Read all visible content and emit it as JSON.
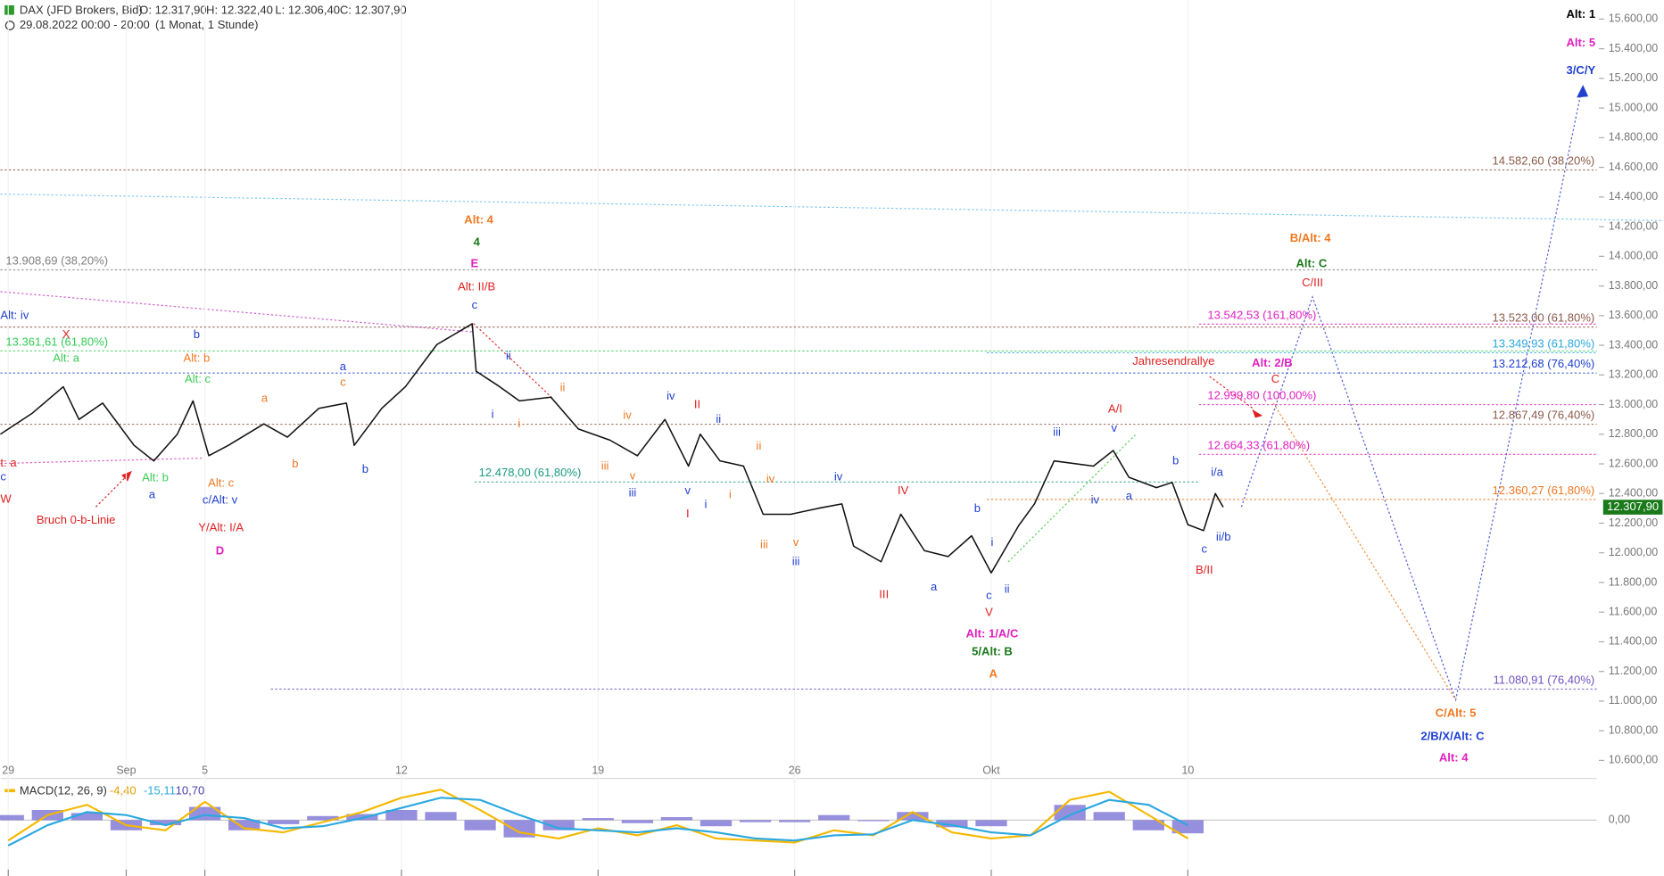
{
  "chart_data": [
    {
      "type": "line",
      "title": "DAX (JFD Brokers, Bid)",
      "ohlc": [
        "O: 12.317,90",
        "H: 12.322,40",
        "L: 12.306,40",
        "C: 12.307,90"
      ],
      "period": "29.08.2022 00:00 - 20:00",
      "interval": "(1 Monat, 1 Stunde)",
      "color": "#111111",
      "grid": true,
      "xlim": [
        -0.2,
        40.4
      ],
      "ylim": [
        10600,
        15600
      ],
      "xticks": [
        {
          "value": 0,
          "label": "29"
        },
        {
          "value": 3,
          "label": "Sep"
        },
        {
          "value": 5,
          "label": "5"
        },
        {
          "value": 10,
          "label": "12"
        },
        {
          "value": 15,
          "label": "19"
        },
        {
          "value": 20,
          "label": "26"
        },
        {
          "value": 25,
          "label": "Okt"
        },
        {
          "value": 30,
          "label": "10"
        }
      ],
      "yticks": [
        {
          "value": 10600,
          "label": "10.600,00"
        },
        {
          "value": 10800,
          "label": "10.800,00"
        },
        {
          "value": 11000,
          "label": "11.000,00"
        },
        {
          "value": 11200,
          "label": "11.200,00"
        },
        {
          "value": 11400,
          "label": "11.400,00"
        },
        {
          "value": 11600,
          "label": "11.600,00"
        },
        {
          "value": 11800,
          "label": "11.800,00"
        },
        {
          "value": 12000,
          "label": "12.000,00"
        },
        {
          "value": 12200,
          "label": "12.200,00"
        },
        {
          "value": 12400,
          "label": "12.400,00"
        },
        {
          "value": 12600,
          "label": "12.600,00"
        },
        {
          "value": 12800,
          "label": "12.800,00"
        },
        {
          "value": 13000,
          "label": "13.000,00"
        },
        {
          "value": 13200,
          "label": "13.200,00"
        },
        {
          "value": 13400,
          "label": "13.400,00"
        },
        {
          "value": 13600,
          "label": "13.600,00"
        },
        {
          "value": 13800,
          "label": "13.800,00"
        },
        {
          "value": 14000,
          "label": "14.000,00"
        },
        {
          "value": 14200,
          "label": "14.200,00"
        },
        {
          "value": 14400,
          "label": "14.400,00"
        },
        {
          "value": 14600,
          "label": "14.600,00"
        },
        {
          "value": 14800,
          "label": "14.800,00"
        },
        {
          "value": 15000,
          "label": "15.000,00"
        },
        {
          "value": 15200,
          "label": "15.200,00"
        },
        {
          "value": 15400,
          "label": "15.400,00"
        },
        {
          "value": 15600,
          "label": "15.600,00"
        }
      ],
      "x": [
        -0.2,
        0.6,
        1.4,
        1.8,
        2.4,
        3.2,
        3.7,
        4.3,
        4.7,
        5.1,
        5.6,
        6.5,
        7.1,
        7.9,
        8.6,
        8.8,
        9.5,
        10.1,
        10.9,
        11.8,
        11.9,
        12.5,
        13.0,
        13.8,
        14.5,
        15.3,
        16.0,
        16.7,
        17.3,
        17.6,
        18.1,
        18.7,
        19.2,
        19.9,
        20.6,
        21.2,
        21.5,
        22.2,
        22.7,
        23.3,
        23.9,
        24.5,
        25.0,
        25.7,
        26.1,
        26.6,
        27.6,
        28.1,
        28.5,
        29.2,
        29.6,
        30.0,
        30.4,
        30.7,
        30.9
      ],
      "values": [
        12800,
        12940,
        13120,
        12900,
        13010,
        12725,
        12620,
        12800,
        13025,
        12655,
        12725,
        12870,
        12780,
        12975,
        13010,
        12725,
        12975,
        13120,
        13405,
        13545,
        13225,
        13120,
        13025,
        13050,
        12835,
        12760,
        12655,
        12900,
        12585,
        12800,
        12620,
        12585,
        12260,
        12260,
        12300,
        12330,
        12045,
        11940,
        12260,
        12015,
        11975,
        12115,
        11865,
        12185,
        12330,
        12620,
        12585,
        12690,
        12510,
        12440,
        12475,
        12190,
        12150,
        12400,
        12308
      ],
      "last_price": {
        "value": 12307.9,
        "label": "12.307,90",
        "color": "#1a7a1a"
      },
      "levels": [
        {
          "value": 14582.6,
          "label": "14.582,60 (38,20%)",
          "color": "#8b5a4a"
        },
        {
          "value": 13908.69,
          "label": "13.908,69 (38,20%)",
          "color": "#808080"
        },
        {
          "value": 13523,
          "label": "13.523,00 (61,80%)",
          "color": "#8b5a4a"
        },
        {
          "value": 13361.61,
          "label": "13.361,61 (61,80%)",
          "color": "#33cc55"
        },
        {
          "value": 13349.93,
          "label": "13.349,93 (61,80%)",
          "color": "#2aa8e0"
        },
        {
          "value": 13212.68,
          "label": "13.212,68 (76,40%)",
          "color": "#2040d0"
        },
        {
          "value": 12867.49,
          "label": "12.867,49 (76,40%)",
          "color": "#8b5a4a"
        },
        {
          "value": 12478,
          "label": "12.478,00 (61,80%)",
          "color": "#1a9a80"
        },
        {
          "value": 12360.27,
          "label": "12.360,27 (61,80%)",
          "color": "#f07820"
        },
        {
          "value": 11080.91,
          "label": "11.080,91 (76,40%)",
          "color": "#7050c0"
        },
        {
          "value": 13542.53,
          "label": "13.542,53 (161,80%)",
          "color": "#e020c0"
        },
        {
          "value": 12999.8,
          "label": "12.999,80 (100,00%)",
          "color": "#e020c0"
        },
        {
          "value": 12664.33,
          "label": "12.664,33 (61,80%)",
          "color": "#e020c0"
        }
      ],
      "annotations": [
        {
          "text": "Alt: 1",
          "color": "#000000"
        },
        {
          "text": "Alt: 5",
          "color": "#e020c0"
        },
        {
          "text": "3/C/Y",
          "color": "#2040d0"
        },
        {
          "text": "Alt: 4",
          "color": "#f07820"
        },
        {
          "text": "4",
          "color": "#1a7a1a"
        },
        {
          "text": "E",
          "color": "#e020c0"
        },
        {
          "text": "Alt: II/B",
          "color": "#e02020"
        },
        {
          "text": "c",
          "color": "#2040d0"
        },
        {
          "text": "Alt: iv",
          "color": "#2040d0"
        },
        {
          "text": "X",
          "color": "#e02020"
        },
        {
          "text": "Alt: a",
          "color": "#3ccc55"
        },
        {
          "text": "b",
          "color": "#2040d0"
        },
        {
          "text": "Alt: b",
          "color": "#f07820"
        },
        {
          "text": "Alt: c",
          "color": "#3ccc55"
        },
        {
          "text": "a",
          "color": "#2040d0"
        },
        {
          "text": "c",
          "color": "#f07820"
        },
        {
          "text": "a",
          "color": "#f07820"
        },
        {
          "text": "b",
          "color": "#f07820"
        },
        {
          "text": "b",
          "color": "#2040d0"
        },
        {
          "text": "i",
          "color": "#2040d0"
        },
        {
          "text": "ii",
          "color": "#2040d0"
        },
        {
          "text": "i",
          "color": "#f07820"
        },
        {
          "text": "ii",
          "color": "#f07820"
        },
        {
          "text": "iii",
          "color": "#f07820"
        },
        {
          "text": "iv",
          "color": "#f07820"
        },
        {
          "text": "v",
          "color": "#f07820"
        },
        {
          "text": "iii",
          "color": "#2040d0"
        },
        {
          "text": "iv",
          "color": "#2040d0"
        },
        {
          "text": "II",
          "color": "#e02020"
        },
        {
          "text": "ii",
          "color": "#2040d0"
        },
        {
          "text": "v",
          "color": "#2040d0"
        },
        {
          "text": "i",
          "color": "#2040d0"
        },
        {
          "text": "I",
          "color": "#e02020"
        },
        {
          "text": "i",
          "color": "#f07820"
        },
        {
          "text": "ii",
          "color": "#f07820"
        },
        {
          "text": "iv",
          "color": "#f07820"
        },
        {
          "text": "iii",
          "color": "#f07820"
        },
        {
          "text": "v",
          "color": "#f07820"
        },
        {
          "text": "iii",
          "color": "#2040d0"
        },
        {
          "text": "iv",
          "color": "#2040d0"
        },
        {
          "text": "IV",
          "color": "#e02020"
        },
        {
          "text": "III",
          "color": "#e02020"
        },
        {
          "text": "a",
          "color": "#2040d0"
        },
        {
          "text": "b",
          "color": "#2040d0"
        },
        {
          "text": "i",
          "color": "#2040d0"
        },
        {
          "text": "c",
          "color": "#2040d0"
        },
        {
          "text": "ii",
          "color": "#2040d0"
        },
        {
          "text": "V",
          "color": "#e02020"
        },
        {
          "text": "Alt: 1/A/C",
          "color": "#e020c0"
        },
        {
          "text": "5/Alt: B",
          "color": "#1a7a1a"
        },
        {
          "text": "A",
          "color": "#f07820"
        },
        {
          "text": "iii",
          "color": "#2040d0"
        },
        {
          "text": "v",
          "color": "#2040d0"
        },
        {
          "text": "A/I",
          "color": "#e02020"
        },
        {
          "text": "iv",
          "color": "#2040d0"
        },
        {
          "text": "a",
          "color": "#2040d0"
        },
        {
          "text": "b",
          "color": "#2040d0"
        },
        {
          "text": "c",
          "color": "#2040d0"
        },
        {
          "text": "B/II",
          "color": "#e02020"
        },
        {
          "text": "i/a",
          "color": "#2040d0"
        },
        {
          "text": "ii/b",
          "color": "#2040d0"
        },
        {
          "text": "Jahresendrallye",
          "color": "#e02020"
        },
        {
          "text": "Alt: 2/B",
          "color": "#e020c0"
        },
        {
          "text": "C",
          "color": "#e02020"
        },
        {
          "text": "C/III",
          "color": "#e02020"
        },
        {
          "text": "Alt: C",
          "color": "#1a7a1a"
        },
        {
          "text": "B/Alt: 4",
          "color": "#f07820"
        },
        {
          "text": "C/Alt: 5",
          "color": "#f07820"
        },
        {
          "text": "2/B/X/Alt: C",
          "color": "#2040d0"
        },
        {
          "text": "Alt: 4",
          "color": "#e020c0"
        },
        {
          "text": "Bruch 0-b-Linie",
          "color": "#e02020"
        },
        {
          "text": "Alt: b",
          "color": "#3ccc55"
        },
        {
          "text": "a",
          "color": "#2040d0"
        },
        {
          "text": "c",
          "color": "#2040d0"
        },
        {
          "text": "t: a",
          "color": "#e02020"
        },
        {
          "text": "W",
          "color": "#e02020"
        },
        {
          "text": "Alt: c",
          "color": "#f07820"
        },
        {
          "text": "c/Alt: v",
          "color": "#2040d0"
        },
        {
          "text": "Y/Alt: I/A",
          "color": "#e02020"
        },
        {
          "text": "D",
          "color": "#e020c0"
        }
      ]
    },
    {
      "type": "line",
      "title": "MACD(12, 26, 9)",
      "readouts": [
        {
          "text": "-4,40",
          "color": "#e0a000"
        },
        {
          "text": "-15,11",
          "color": "#2aa8e0"
        },
        {
          "text": "10,70",
          "color": "#4a40b0"
        }
      ],
      "ylim": [
        -55,
        40
      ],
      "yticks": [
        {
          "value": 0,
          "label": "0,00"
        }
      ],
      "x": [
        0,
        1,
        2,
        3,
        4,
        5,
        6,
        7,
        8,
        9,
        10,
        11,
        12,
        13,
        14,
        15,
        16,
        17,
        18,
        19,
        20,
        21,
        22,
        23,
        24,
        25,
        26,
        27,
        28,
        29,
        30
      ],
      "series": [
        {
          "color": "#f5b800",
          "values": [
            -20,
            5,
            15,
            -5,
            -10,
            18,
            -8,
            -12,
            -2,
            8,
            22,
            30,
            10,
            -12,
            -18,
            -8,
            -15,
            -5,
            -18,
            -20,
            -22,
            -10,
            -15,
            8,
            -12,
            -18,
            -15,
            20,
            28,
            5,
            -18
          ]
        },
        {
          "color": "#2aa8e0",
          "values": [
            -25,
            -5,
            8,
            5,
            -5,
            5,
            2,
            -8,
            -6,
            2,
            12,
            22,
            20,
            5,
            -8,
            -10,
            -12,
            -8,
            -12,
            -18,
            -20,
            -15,
            -14,
            0,
            -5,
            -12,
            -15,
            5,
            20,
            15,
            -5
          ]
        }
      ],
      "histogram": {
        "color": "#6a60d0",
        "values": [
          5,
          10,
          7,
          -10,
          -5,
          13,
          -10,
          -4,
          4,
          6,
          10,
          8,
          -10,
          -17,
          -10,
          2,
          -3,
          3,
          -6,
          -2,
          -2,
          5,
          -1,
          8,
          -7,
          -6,
          0,
          15,
          8,
          -10,
          -13
        ]
      }
    }
  ]
}
